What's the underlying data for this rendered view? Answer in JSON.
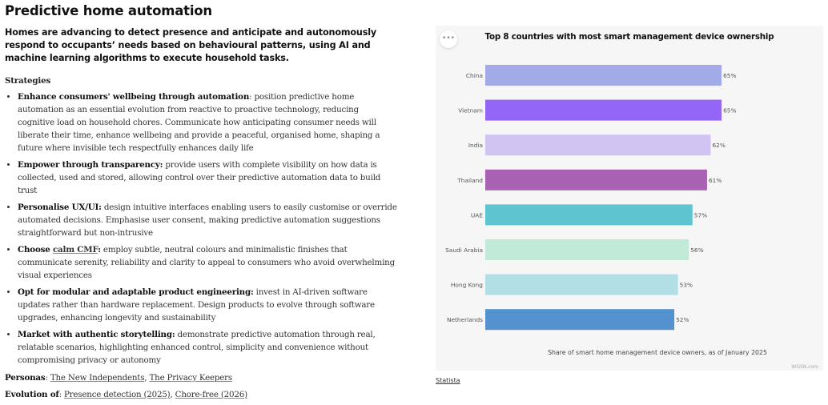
{
  "title": "Predictive home automation",
  "intro": "Homes are advancing to detect presence and anticipate and autonomously respond to occupants’ needs based on behavioural patterns, using AI and machine learning algorithms to execute household tasks.",
  "strategies": {
    "heading": "Strategies",
    "items": [
      {
        "lead": "Enhance consumers' wellbeing through automation",
        "sep": ": ",
        "text": "position predictive home automation as an essential evolution from reactive to proactive technology, reducing cognitive load on household chores. Communicate how anticipating consumer needs will liberate their time, enhance wellbeing and provide a peaceful, organised home, shaping a future where invisible tech respectfully enhances daily life"
      },
      {
        "lead": "Empower through transparency:",
        "sep": " ",
        "text": "provide users with complete visibility on how data is collected, used and stored, allowing control over their predictive automation data to build trust"
      },
      {
        "lead": "Personalise UX/UI:",
        "sep": " ",
        "text": "design intuitive interfaces enabling users to easily customise or override automated decisions. Emphasise user consent, making predictive automation suggestions straightforward but non-intrusive"
      },
      {
        "lead_pre": "Choose ",
        "lead_link": "calm CMF",
        "lead_post": ":",
        "text": "employ subtle, neutral colours and minimalistic finishes that communicate serenity, reliability and clarity to appeal to consumers who avoid overwhelming visual experiences"
      },
      {
        "lead": "Opt for modular and adaptable product engineering:",
        "sep": " ",
        "text": "invest in AI-driven software updates rather than hardware replacement. Design products to evolve through software upgrades, enhancing longevity and sustainability"
      },
      {
        "lead": "Market with authentic storytelling:",
        "sep": " ",
        "text": "demonstrate predictive automation through real, relatable scenarios, highlighting enhanced control, simplicity and convenience without compromising privacy or autonomy"
      }
    ]
  },
  "personas": {
    "label": "Personas",
    "links": [
      "The New Independents",
      "The Privacy Keepers"
    ]
  },
  "evolution": {
    "label": "Evolution of",
    "links": [
      "Presence detection (2025)",
      "Chore-free (2026)"
    ]
  },
  "chart_menu_icon": "more-horizontal-icon",
  "chart_data": {
    "type": "bar",
    "orientation": "horizontal",
    "title": "Top 8 countries with most smart management device ownership",
    "caption": "Share of smart home management device owners, as of January 2025",
    "categories": [
      "China",
      "Vietnam",
      "India",
      "Thailand",
      "UAE",
      "Saudi Arabia",
      "Hong Kong",
      "Netherlands"
    ],
    "values": [
      65,
      65,
      62,
      61,
      57,
      56,
      53,
      52
    ],
    "value_labels": [
      "65%",
      "65%",
      "62%",
      "61%",
      "57%",
      "56%",
      "53%",
      "52%"
    ],
    "colors": [
      "#a3aae8",
      "#9466f7",
      "#d1c4f2",
      "#a962b3",
      "#5ec4d0",
      "#c1ead9",
      "#b1dfe5",
      "#5491cf"
    ],
    "xlim": [
      0,
      100
    ],
    "grid": false
  },
  "watermark": "WGSN.com",
  "source_link": "Statista"
}
